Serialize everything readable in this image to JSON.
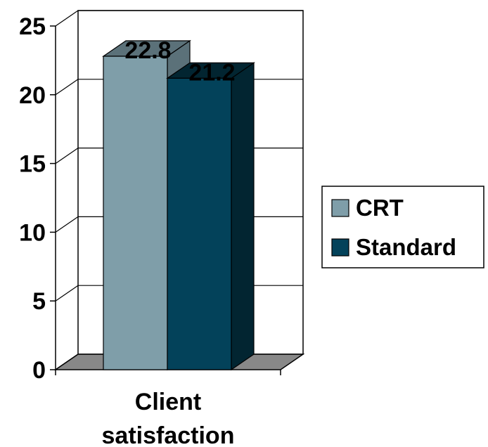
{
  "chart_data": {
    "type": "bar",
    "categories": [
      "Client satisfaction"
    ],
    "category_label_lines": [
      "Client",
      "satisfaction"
    ],
    "series": [
      {
        "name": "CRT",
        "values": [
          22.8
        ],
        "value_labels": [
          "22.8"
        ],
        "color": "#7f9ea9",
        "side_color": "#5b7179",
        "top_color": "#5b7179"
      },
      {
        "name": "Standard",
        "values": [
          21.2
        ],
        "value_labels": [
          "21.2"
        ],
        "color": "#03425a",
        "side_color": "#022531",
        "top_color": "#022531"
      }
    ],
    "y_ticks": [
      "0",
      "5",
      "10",
      "15",
      "20",
      "25"
    ],
    "ylim": [
      0,
      25
    ],
    "grid": true,
    "legend_position": "right",
    "style": "3d-column",
    "floor_color": "#888888"
  }
}
